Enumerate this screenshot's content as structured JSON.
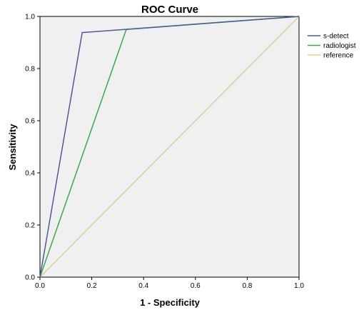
{
  "chart_data": {
    "type": "line",
    "title": "ROC Curve",
    "xlabel": "1 - Specificity",
    "ylabel": "Sensitivity",
    "xlim": [
      0,
      1
    ],
    "ylim": [
      0,
      1
    ],
    "xticks": [
      "0.0",
      "0.2",
      "0.4",
      "0.6",
      "0.8",
      "1.0"
    ],
    "yticks": [
      "0.0",
      "0.2",
      "0.4",
      "0.6",
      "0.8",
      "1.0"
    ],
    "grid": false,
    "legend_position": "top-right",
    "series": [
      {
        "name": "s-detect",
        "color": "#4a5a9b",
        "points": [
          [
            0,
            0
          ],
          [
            0.163,
            0.938
          ],
          [
            1,
            1
          ]
        ]
      },
      {
        "name": "radiologist",
        "color": "#3aaa4a",
        "points": [
          [
            0,
            0
          ],
          [
            0.333,
            0.95
          ],
          [
            1,
            1
          ]
        ]
      },
      {
        "name": "reference",
        "color": "#d8d296",
        "points": [
          [
            0,
            0
          ],
          [
            1,
            1
          ]
        ]
      }
    ],
    "colors": {
      "plot_background": "#f0f0f0",
      "axis": "#000000"
    }
  }
}
